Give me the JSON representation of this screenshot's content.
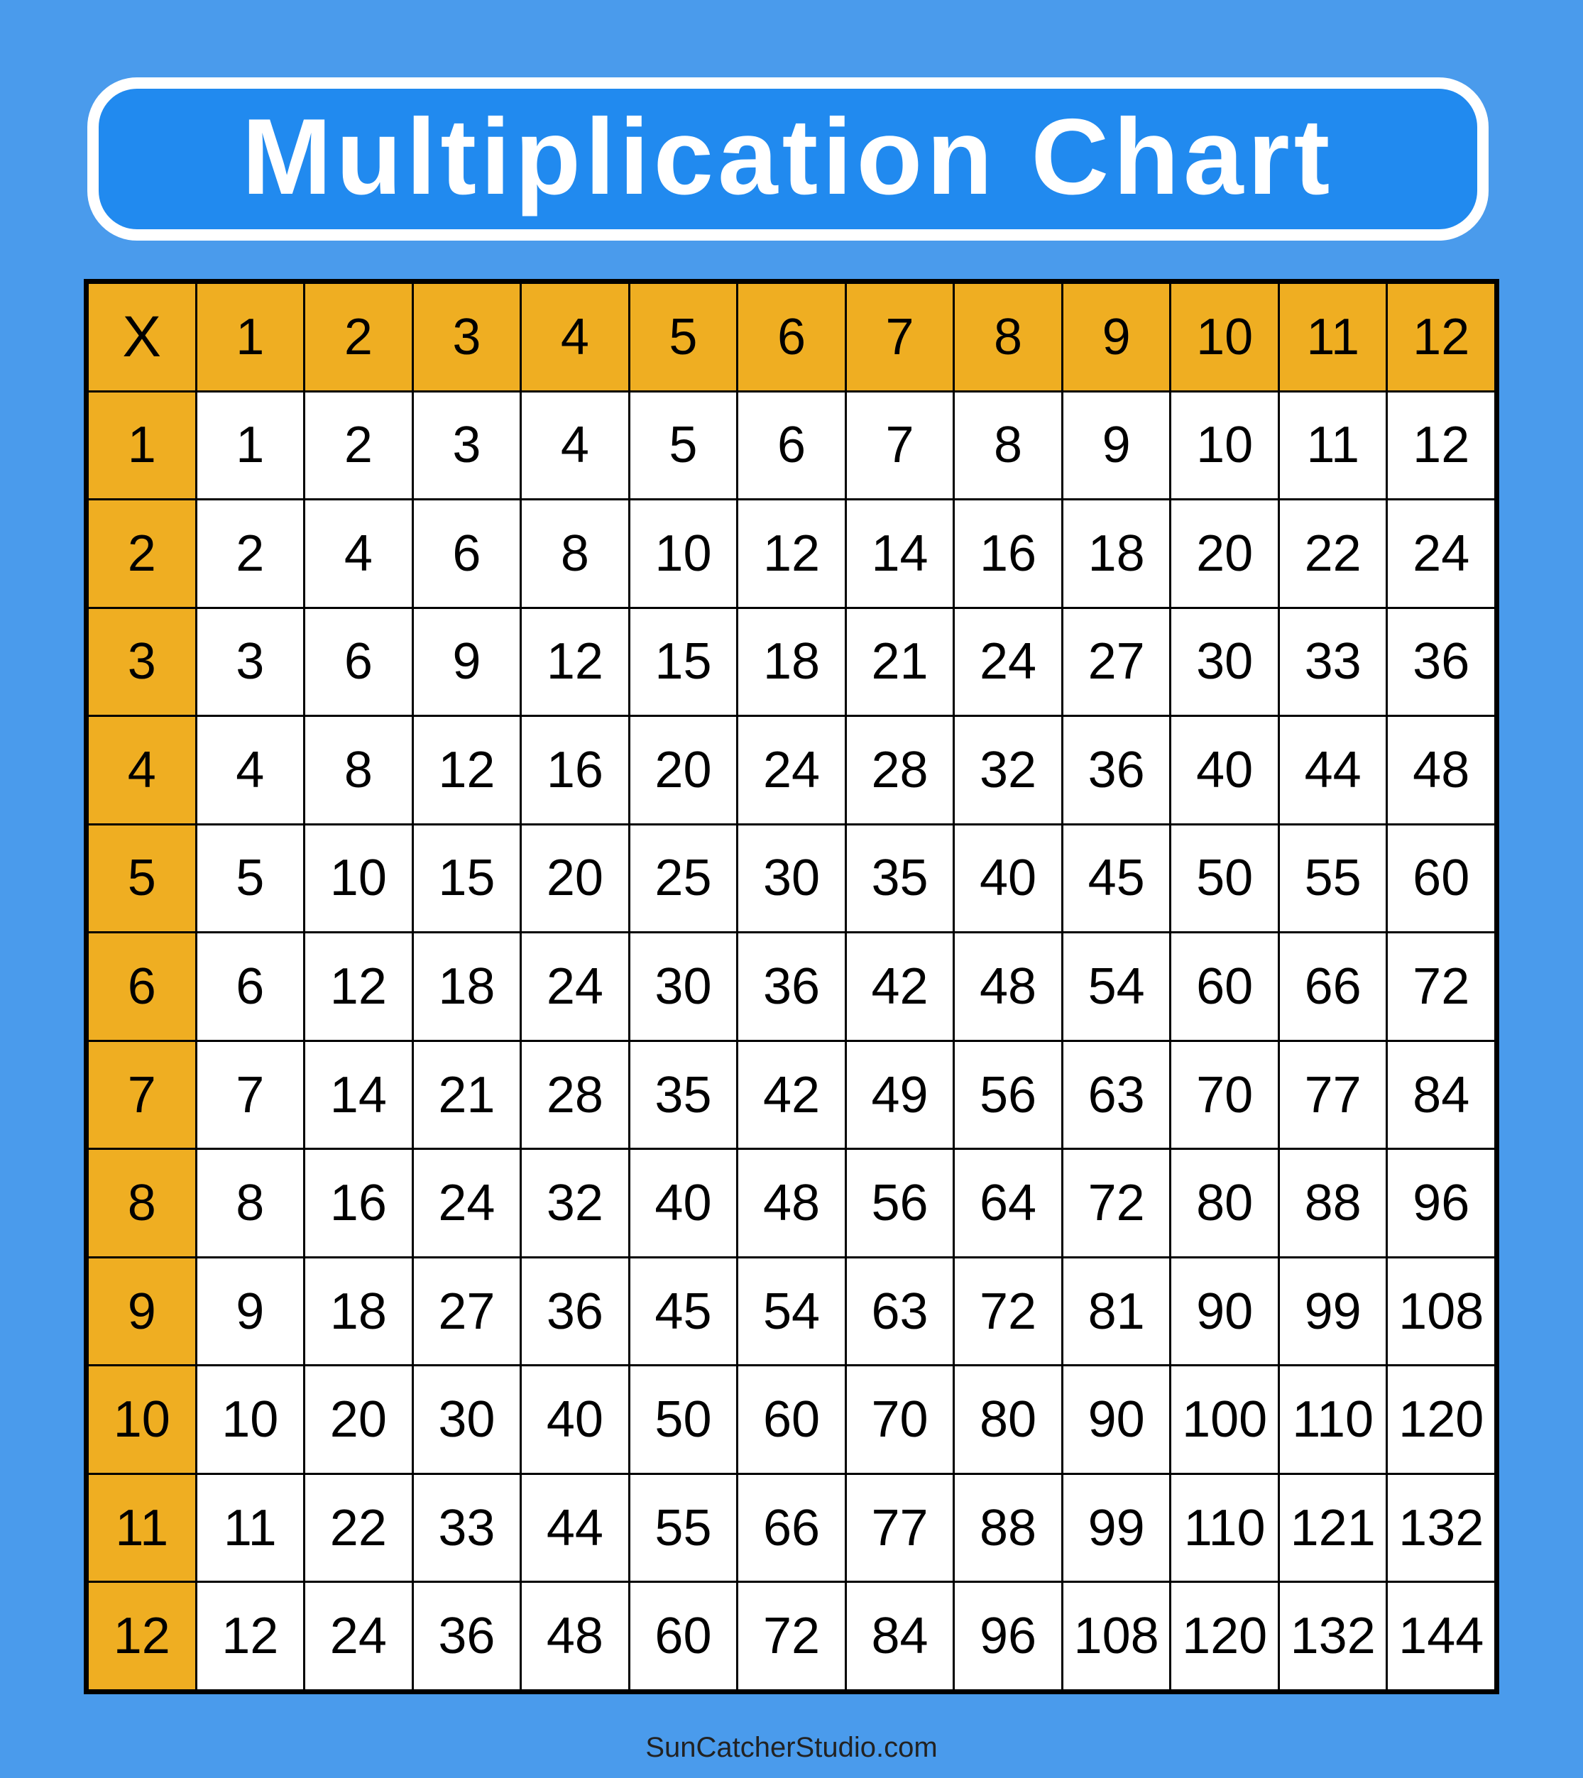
{
  "title": "Multiplication Chart",
  "footer": "SunCatcherStudio.com",
  "colors": {
    "background": "#4A9BEC",
    "title_box": "#218AEF",
    "header": "#EFAE22",
    "cell": "#FFFFFF",
    "grid_lines": "#000000"
  },
  "chart_data": {
    "type": "table",
    "title": "Multiplication Chart",
    "corner": "X",
    "columns": [
      "1",
      "2",
      "3",
      "4",
      "5",
      "6",
      "7",
      "8",
      "9",
      "10",
      "11",
      "12"
    ],
    "rows": [
      {
        "label": "1",
        "values": [
          "1",
          "2",
          "3",
          "4",
          "5",
          "6",
          "7",
          "8",
          "9",
          "10",
          "11",
          "12"
        ]
      },
      {
        "label": "2",
        "values": [
          "2",
          "4",
          "6",
          "8",
          "10",
          "12",
          "14",
          "16",
          "18",
          "20",
          "22",
          "24"
        ]
      },
      {
        "label": "3",
        "values": [
          "3",
          "6",
          "9",
          "12",
          "15",
          "18",
          "21",
          "24",
          "27",
          "30",
          "33",
          "36"
        ]
      },
      {
        "label": "4",
        "values": [
          "4",
          "8",
          "12",
          "16",
          "20",
          "24",
          "28",
          "32",
          "36",
          "40",
          "44",
          "48"
        ]
      },
      {
        "label": "5",
        "values": [
          "5",
          "10",
          "15",
          "20",
          "25",
          "30",
          "35",
          "40",
          "45",
          "50",
          "55",
          "60"
        ]
      },
      {
        "label": "6",
        "values": [
          "6",
          "12",
          "18",
          "24",
          "30",
          "36",
          "42",
          "48",
          "54",
          "60",
          "66",
          "72"
        ]
      },
      {
        "label": "7",
        "values": [
          "7",
          "14",
          "21",
          "28",
          "35",
          "42",
          "49",
          "56",
          "63",
          "70",
          "77",
          "84"
        ]
      },
      {
        "label": "8",
        "values": [
          "8",
          "16",
          "24",
          "32",
          "40",
          "48",
          "56",
          "64",
          "72",
          "80",
          "88",
          "96"
        ]
      },
      {
        "label": "9",
        "values": [
          "9",
          "18",
          "27",
          "36",
          "45",
          "54",
          "63",
          "72",
          "81",
          "90",
          "99",
          "108"
        ]
      },
      {
        "label": "10",
        "values": [
          "10",
          "20",
          "30",
          "40",
          "50",
          "60",
          "70",
          "80",
          "90",
          "100",
          "110",
          "120"
        ]
      },
      {
        "label": "11",
        "values": [
          "11",
          "22",
          "33",
          "44",
          "55",
          "66",
          "77",
          "88",
          "99",
          "110",
          "121",
          "132"
        ]
      },
      {
        "label": "12",
        "values": [
          "12",
          "24",
          "36",
          "48",
          "60",
          "72",
          "84",
          "96",
          "108",
          "120",
          "132",
          "144"
        ]
      }
    ]
  }
}
